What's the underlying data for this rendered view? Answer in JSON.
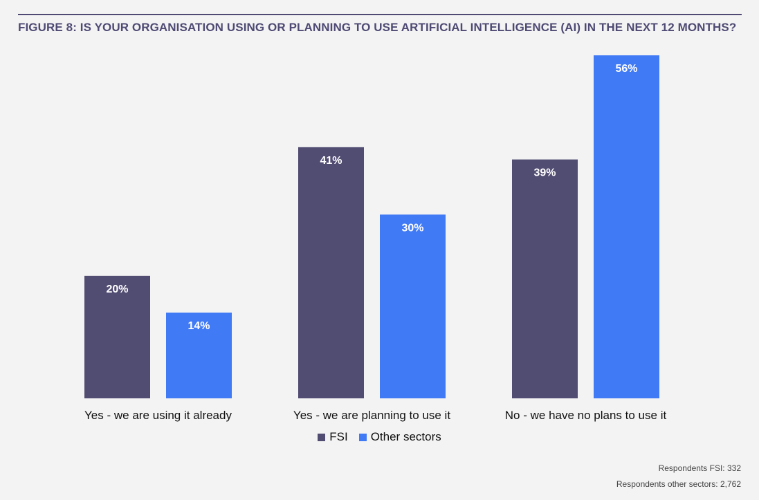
{
  "title": "FIGURE 8: IS YOUR ORGANISATION USING OR PLANNING TO USE ARTIFICIAL INTELLIGENCE (AI) IN THE NEXT 12 MONTHS?",
  "footnotes": {
    "fsi": "Respondents FSI: 332",
    "other": "Respondents other sectors: 2,762"
  },
  "colors": {
    "fsi": "#514c72",
    "other": "#417af5",
    "title": "#4e4a74"
  },
  "chart_data": {
    "type": "bar",
    "title": "FIGURE 8: IS YOUR ORGANISATION USING OR PLANNING TO USE ARTIFICIAL INTELLIGENCE (AI) IN THE NEXT 12 MONTHS?",
    "categories": [
      "Yes - we are using it already",
      "Yes - we are planning to use it",
      "No - we have no plans to use it"
    ],
    "series": [
      {
        "name": "FSI",
        "values": [
          20,
          41,
          39
        ],
        "labels": [
          "20%",
          "41%",
          "39%"
        ]
      },
      {
        "name": "Other sectors",
        "values": [
          14,
          30,
          56
        ],
        "labels": [
          "14%",
          "30%",
          "56%"
        ]
      }
    ],
    "unit": "%",
    "ylim": [
      0,
      56
    ],
    "grid": false,
    "legend": "bottom-center",
    "xlabel": "",
    "ylabel": ""
  }
}
